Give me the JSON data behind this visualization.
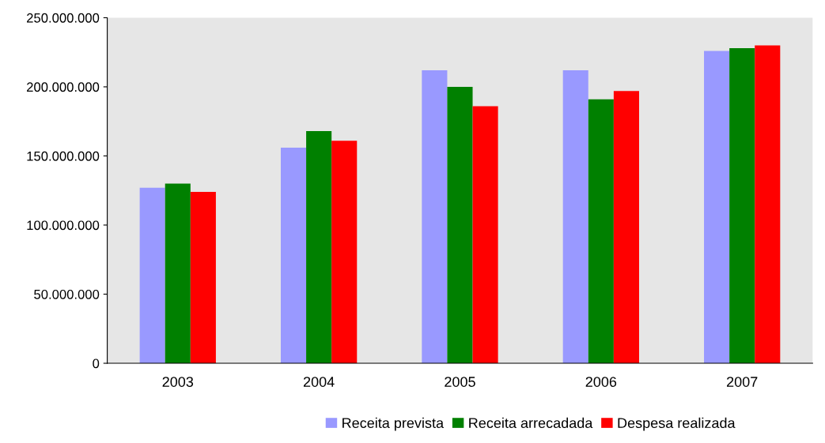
{
  "chart_data": {
    "type": "bar",
    "categories": [
      "2003",
      "2004",
      "2005",
      "2006",
      "2007"
    ],
    "series": [
      {
        "name": "Receita prevista",
        "color": "#9999ff",
        "values": [
          127000000,
          156000000,
          212000000,
          212000000,
          226000000
        ]
      },
      {
        "name": "Receita arrecadada",
        "color": "#008000",
        "values": [
          130000000,
          168000000,
          200000000,
          191000000,
          228000000
        ]
      },
      {
        "name": "Despesa realizada",
        "color": "#ff0000",
        "values": [
          124000000,
          161000000,
          186000000,
          197000000,
          230000000
        ]
      }
    ],
    "ylim": [
      0,
      250000000
    ],
    "yticks": [
      {
        "value": 0,
        "label": "0"
      },
      {
        "value": 50000000,
        "label": "50.000.000"
      },
      {
        "value": 100000000,
        "label": "100.000.000"
      },
      {
        "value": 150000000,
        "label": "150.000.000"
      },
      {
        "value": 200000000,
        "label": "200.000.000"
      },
      {
        "value": 250000000,
        "label": "250.000.000"
      }
    ],
    "grid": false,
    "legend": "bottom"
  }
}
